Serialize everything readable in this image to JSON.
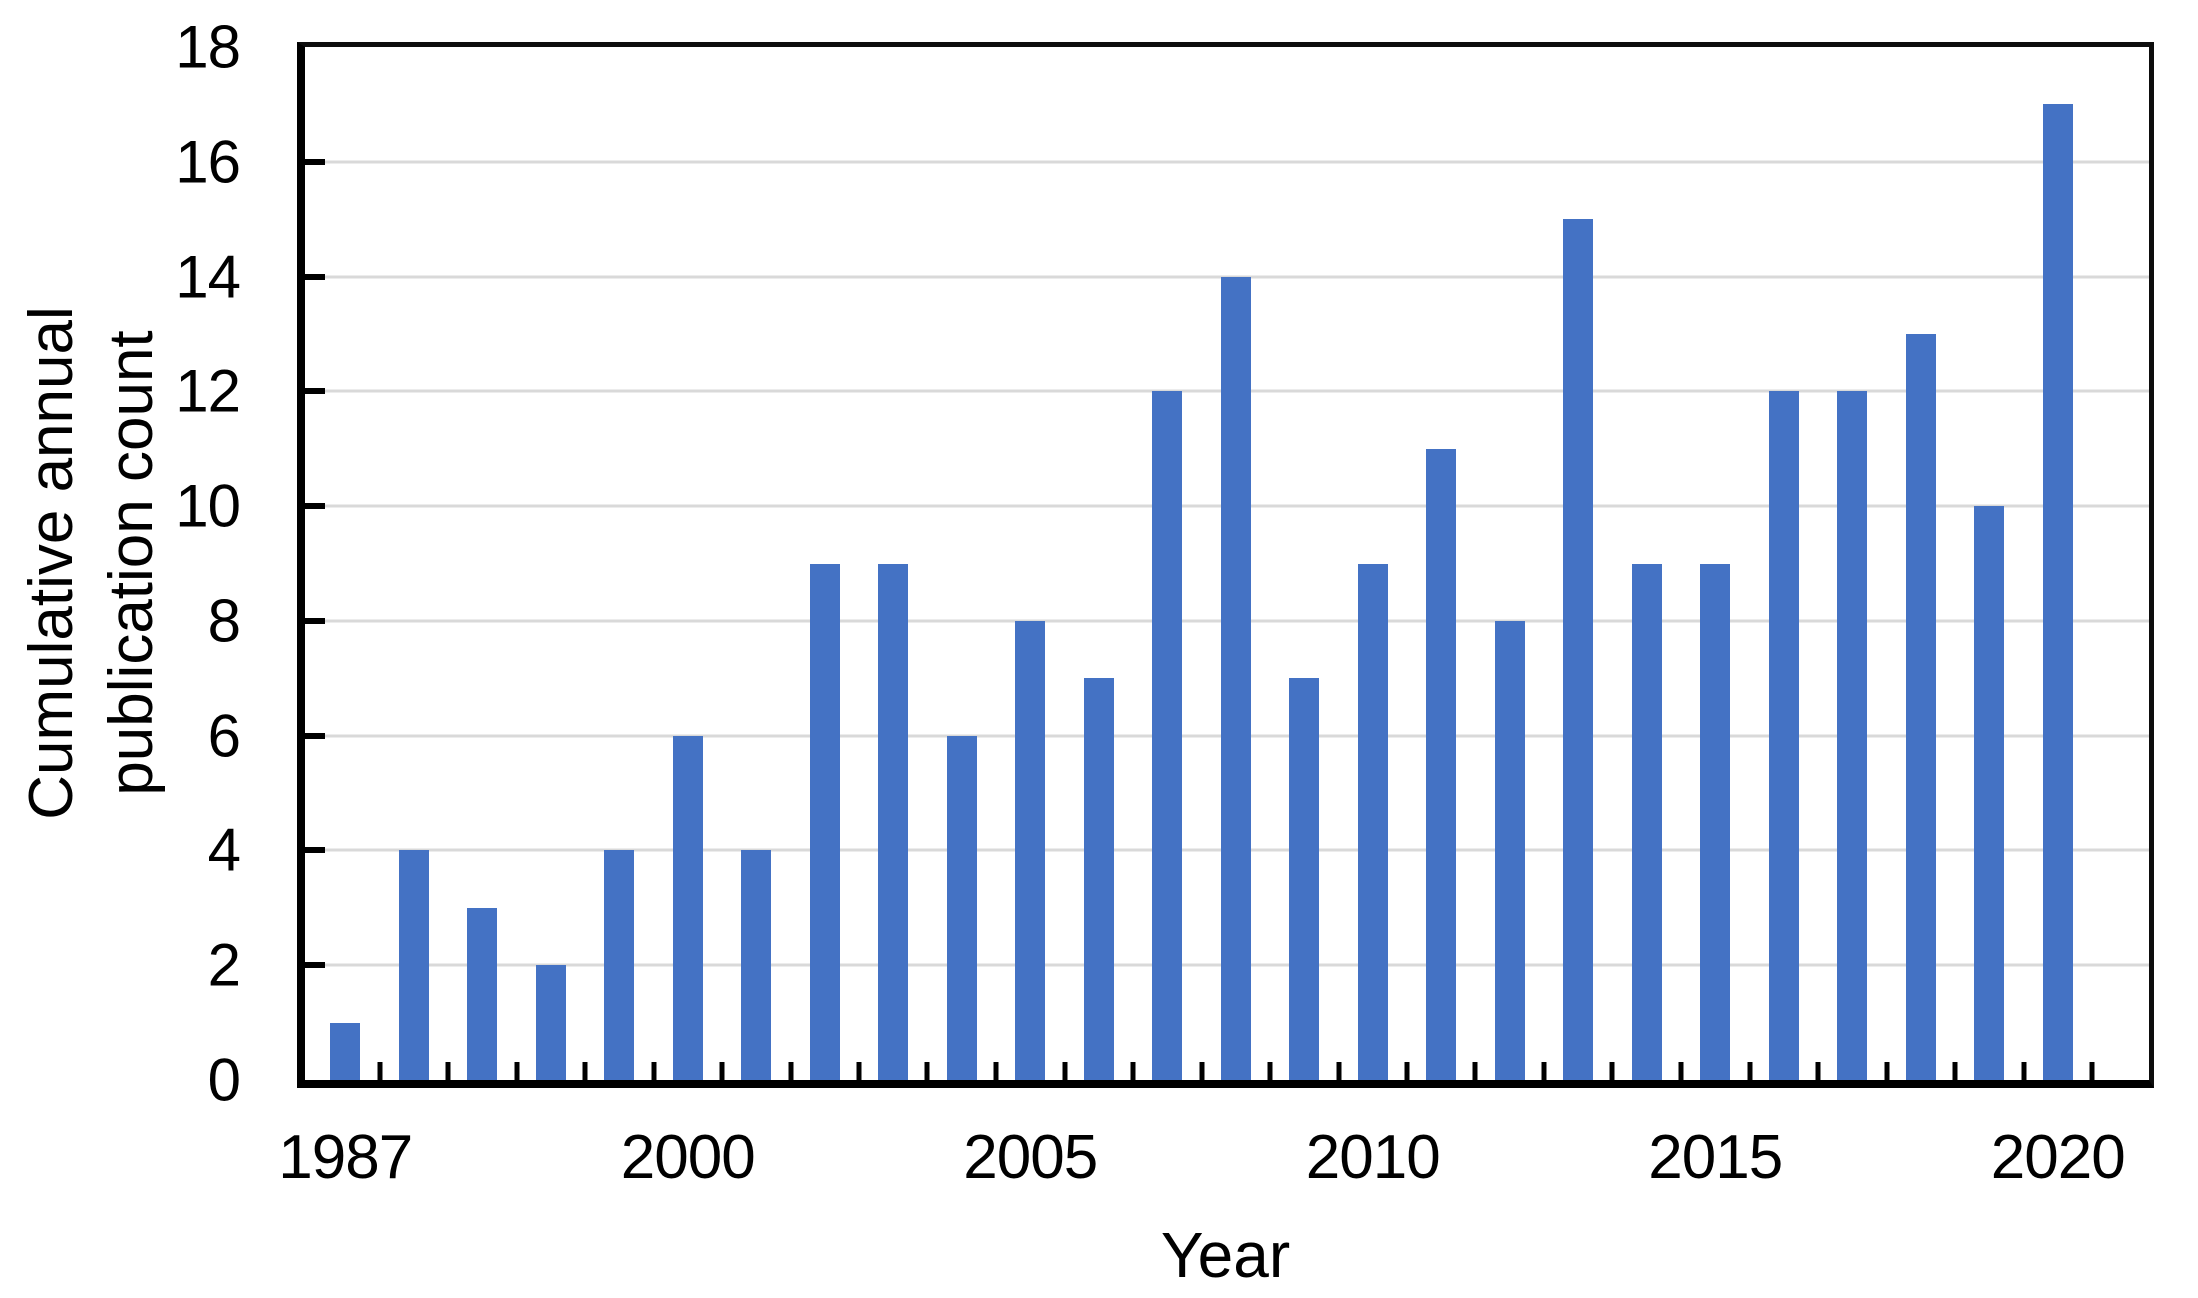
{
  "chart_data": {
    "type": "bar",
    "xlabel": "Year",
    "ylabel_lines": [
      "Cumulative annual",
      "publication count"
    ],
    "ylim": [
      0,
      18
    ],
    "y_ticks": [
      0,
      2,
      4,
      6,
      8,
      10,
      12,
      14,
      16,
      18
    ],
    "n_bars": 26,
    "values": [
      1,
      4,
      3,
      2,
      4,
      6,
      4,
      9,
      9,
      6,
      8,
      7,
      12,
      14,
      7,
      9,
      11,
      8,
      15,
      9,
      9,
      12,
      12,
      13,
      10,
      17
    ],
    "x_tick_labels": [
      {
        "bar_index": 0,
        "label": "1987"
      },
      {
        "bar_index": 5,
        "label": "2000"
      },
      {
        "bar_index": 10,
        "label": "2005"
      },
      {
        "bar_index": 15,
        "label": "2010"
      },
      {
        "bar_index": 20,
        "label": "2015"
      },
      {
        "bar_index": 25,
        "label": "2020"
      }
    ],
    "bar_color": "#4472C4",
    "gridline_color": "#D9D9D9",
    "axis_color": "#000000",
    "grid": "horizontal",
    "legend": false
  }
}
